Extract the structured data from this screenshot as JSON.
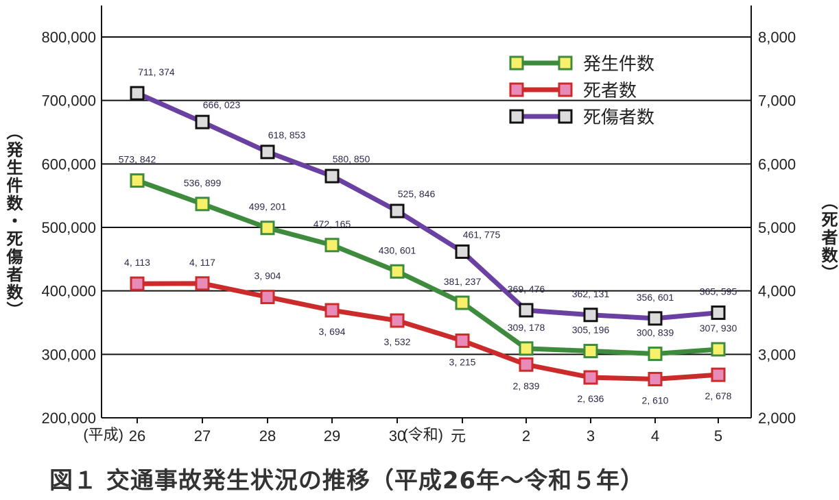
{
  "chart_data": {
    "type": "line",
    "title": "図１ 交通事故発生状況の推移（平成26年～令和５年）",
    "categories": [
      "26",
      "27",
      "28",
      "29",
      "30",
      "元",
      "2",
      "3",
      "4",
      "5"
    ],
    "era_labels": {
      "0": "(平成)",
      "5": "(令和)"
    },
    "ylabel_left": "（発生件数・死傷者数）",
    "ylabel_right": "（死者数）",
    "ylim_left": [
      200000,
      800000
    ],
    "ylim_right": [
      2000,
      8000
    ],
    "yticks_left": [
      "200,000",
      "300,000",
      "400,000",
      "500,000",
      "600,000",
      "700,000",
      "800,000"
    ],
    "yticks_right": [
      "2,000",
      "3,000",
      "4,000",
      "5,000",
      "6,000",
      "7,000",
      "8,000"
    ],
    "grid": true,
    "legend_position": "top-right",
    "series": [
      {
        "name": "発生件数",
        "axis": "left",
        "color": "#3e8b3e",
        "marker_color": "#f6f06a",
        "values": [
          573842,
          536899,
          499201,
          472165,
          430601,
          381237,
          309178,
          305196,
          300839,
          307930
        ],
        "labels": [
          "573, 842",
          "536, 899",
          "499, 201",
          "472, 165",
          "430, 601",
          "381, 237",
          "309, 178",
          "305, 196",
          "300, 839",
          "307, 930"
        ]
      },
      {
        "name": "死者数",
        "axis": "right",
        "color": "#cc2b2b",
        "marker_color": "#e88bb9",
        "values": [
          4113,
          4117,
          3904,
          3694,
          3532,
          3215,
          2839,
          2636,
          2610,
          2678
        ],
        "labels": [
          "4, 113",
          "4, 117",
          "3, 904",
          "3, 694",
          "3, 532",
          "3, 215",
          "2, 839",
          "2, 636",
          "2, 610",
          "2, 678"
        ]
      },
      {
        "name": "死傷者数",
        "axis": "left",
        "color": "#6a40a2",
        "marker_color": "#dcdcdc",
        "values": [
          711374,
          666023,
          618853,
          580850,
          525846,
          461775,
          369476,
          362131,
          356601,
          365595
        ],
        "labels": [
          "711, 374",
          "666, 023",
          "618, 853",
          "580, 850",
          "525, 846",
          "461, 775",
          "369, 476",
          "362, 131",
          "356, 601",
          "365, 595"
        ]
      }
    ]
  }
}
